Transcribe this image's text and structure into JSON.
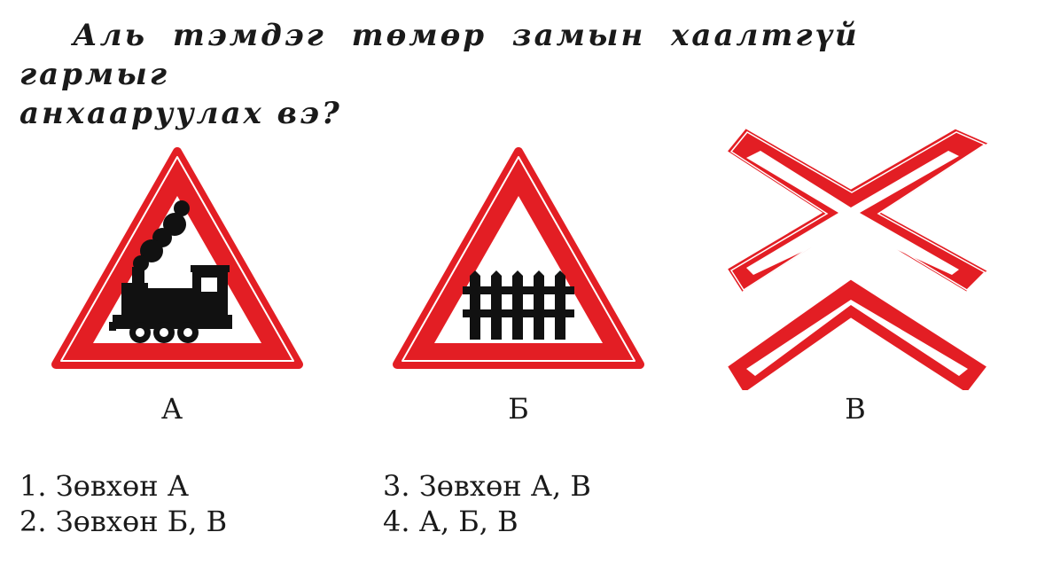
{
  "question": {
    "line1": "Аль тэмдэг төмөр замын хаалтгүй гармыг",
    "line2": "анхааруулах вэ?"
  },
  "signs": [
    {
      "letter": "А",
      "icon": "railway-crossing-without-barrier-steam-locomotive-icon"
    },
    {
      "letter": "Б",
      "icon": "railway-crossing-with-barrier-fence-icon"
    },
    {
      "letter": "В",
      "icon": "double-track-railway-crossing-cross-icon"
    }
  ],
  "answers": [
    {
      "text": "1. Зөвхөн А"
    },
    {
      "text": "2. Зөвхөн Б, В"
    },
    {
      "text": "3. Зөвхөн А, В"
    },
    {
      "text": "4. А, Б, В"
    }
  ],
  "colors": {
    "sign_red": "#e31e24",
    "sign_black": "#111111",
    "text": "#1a1a1a"
  }
}
